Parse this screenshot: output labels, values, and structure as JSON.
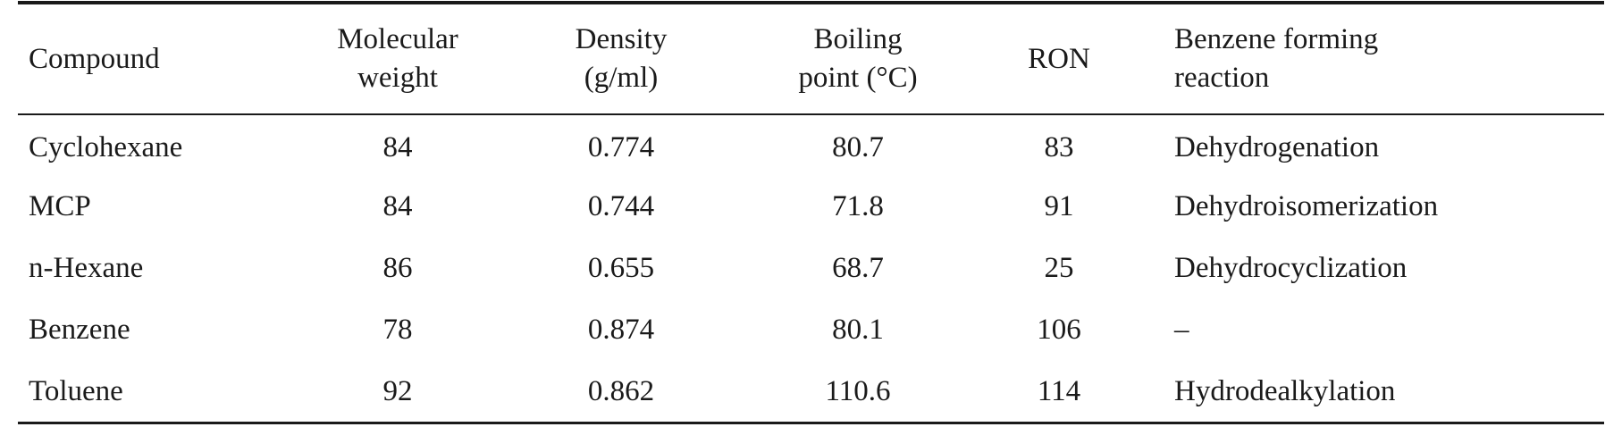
{
  "table": {
    "headers": [
      {
        "lines": [
          "Compound"
        ]
      },
      {
        "lines": [
          "Molecular",
          "weight"
        ]
      },
      {
        "lines": [
          "Density",
          "(g/ml)"
        ]
      },
      {
        "lines": [
          "Boiling",
          "point (°C)"
        ]
      },
      {
        "lines": [
          "RON"
        ]
      },
      {
        "lines": [
          "Benzene forming",
          "reaction"
        ]
      }
    ],
    "rows": [
      [
        "Cyclohexane",
        "84",
        "0.774",
        "80.7",
        "83",
        "Dehydrogenation"
      ],
      [
        "MCP",
        "84",
        "0.744",
        "71.8",
        "91",
        "Dehydroisomerization"
      ],
      [
        "n-Hexane",
        "86",
        "0.655",
        "68.7",
        "25",
        "Dehydrocyclization"
      ],
      [
        "Benzene",
        "78",
        "0.874",
        "80.1",
        "106",
        "–"
      ],
      [
        "Toluene",
        "92",
        "0.862",
        "110.6",
        "114",
        "Hydrodealkylation"
      ]
    ]
  }
}
